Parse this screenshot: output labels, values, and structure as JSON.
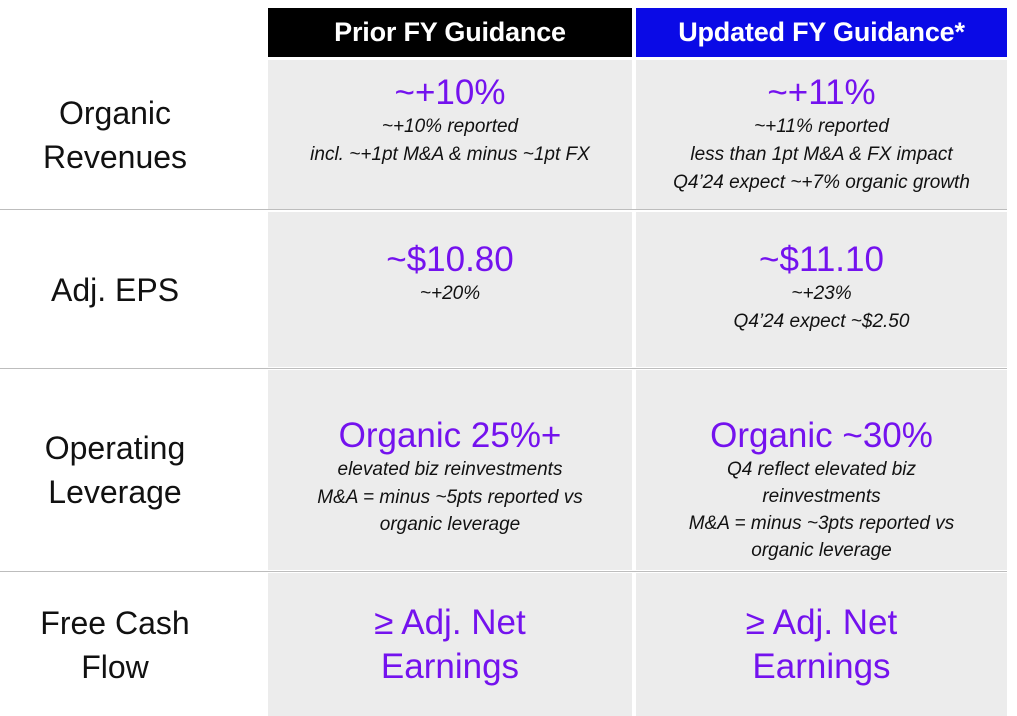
{
  "headers": {
    "prior": "Prior FY Guidance",
    "updated": "Updated FY Guidance*"
  },
  "rows": [
    {
      "label_lines": [
        "Organic",
        "Revenues"
      ],
      "prior": {
        "headline": "~+10%",
        "notes": [
          "~+10% reported",
          "incl. ~+1pt M&A & minus ~1pt FX"
        ]
      },
      "updated": {
        "headline": "~+11%",
        "notes": [
          "~+11% reported",
          "less than 1pt M&A & FX impact",
          "Q4’24 expect ~+7% organic growth"
        ]
      }
    },
    {
      "label_lines": [
        "Adj. EPS"
      ],
      "prior": {
        "headline": "~$10.80",
        "notes": [
          "~+20%"
        ]
      },
      "updated": {
        "headline": "~$11.10",
        "notes": [
          "~+23%",
          "Q4’24 expect ~$2.50"
        ]
      }
    },
    {
      "label_lines": [
        "Operating",
        "Leverage"
      ],
      "prior": {
        "headline": "Organic 25%+",
        "notes": [
          "elevated biz reinvestments",
          "M&A = minus ~5pts reported vs",
          "organic leverage"
        ]
      },
      "updated": {
        "headline": "Organic ~30%",
        "notes": [
          "Q4 reflect elevated biz",
          "reinvestments",
          "M&A = minus ~3pts reported vs",
          "organic leverage"
        ]
      }
    },
    {
      "label_lines": [
        "Free Cash",
        "Flow"
      ],
      "prior": {
        "headline_lines": [
          "≥ Adj. Net",
          "Earnings"
        ]
      },
      "updated": {
        "headline_lines": [
          "≥ Adj. Net",
          "Earnings"
        ]
      }
    }
  ],
  "colors": {
    "prior_header_bg": "#000000",
    "updated_header_bg": "#0a0ae6",
    "headline_text": "#7412ee",
    "cell_bg": "#ececec"
  }
}
